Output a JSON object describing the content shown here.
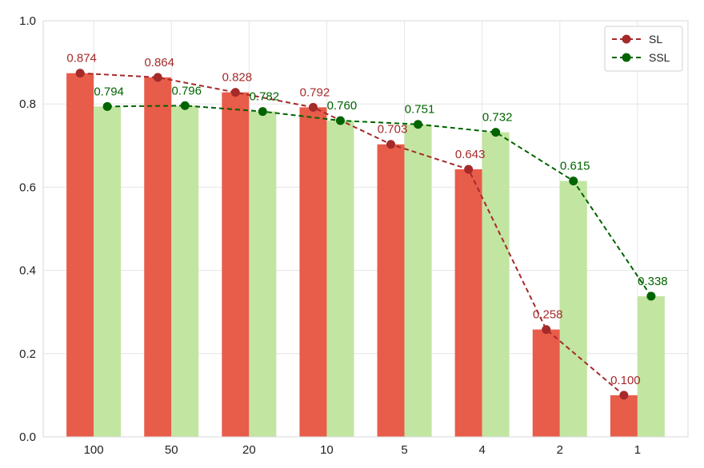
{
  "chart_data": {
    "type": "bar",
    "categories": [
      "100",
      "50",
      "20",
      "10",
      "5",
      "4",
      "2",
      "1"
    ],
    "ylim": [
      0.0,
      1.0
    ],
    "yticks": [
      "0.0",
      "0.2",
      "0.4",
      "0.6",
      "0.8",
      "1.0"
    ],
    "grid": true,
    "legend_position": "top-right",
    "series": [
      {
        "name": "SL",
        "values": [
          0.874,
          0.864,
          0.828,
          0.792,
          0.703,
          0.643,
          0.258,
          0.1
        ],
        "labels": [
          "0.874",
          "0.864",
          "0.828",
          "0.792",
          "0.703",
          "0.643",
          "0.258",
          "0.100"
        ],
        "bar_color": "#e85c4a",
        "line_color": "#a52a2a",
        "label_color": "#a52a2a"
      },
      {
        "name": "SSL",
        "values": [
          0.794,
          0.796,
          0.782,
          0.76,
          0.751,
          0.732,
          0.615,
          0.338
        ],
        "labels": [
          "0.794",
          "0.796",
          "0.782",
          "0.760",
          "0.751",
          "0.732",
          "0.615",
          "0.338"
        ],
        "bar_color": "#c2e5a2",
        "line_color": "#006400",
        "label_color": "#006400"
      }
    ],
    "line_style": "dashed",
    "marker": "circle"
  }
}
